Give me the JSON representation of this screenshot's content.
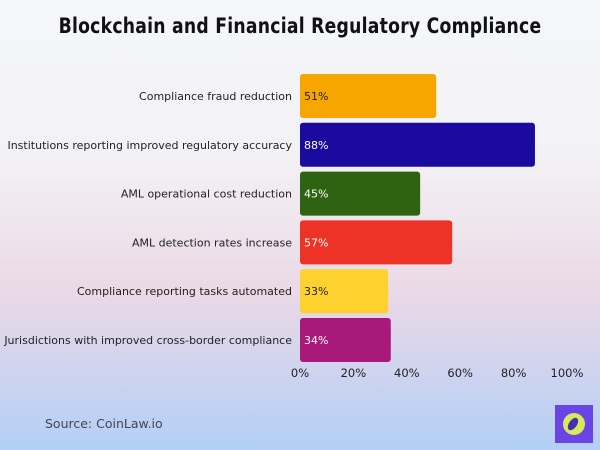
{
  "chart_data": {
    "type": "bar",
    "orientation": "horizontal",
    "title": "Blockchain and Financial Regulatory Compliance",
    "categories": [
      "Compliance fraud reduction",
      "Institutions reporting improved regulatory accuracy",
      "AML operational cost reduction",
      "AML detection rates increase",
      "Compliance reporting tasks automated",
      "Jurisdictions with improved cross-border compliance"
    ],
    "values": [
      51,
      88,
      45,
      57,
      33,
      34
    ],
    "data_labels": [
      "51%",
      "88%",
      "45%",
      "57%",
      "33%",
      "34%"
    ],
    "colors": [
      "#f7a600",
      "#1b0a9e",
      "#2e6411",
      "#ec3325",
      "#fdd22f",
      "#a8197a"
    ],
    "xlim": [
      0,
      100
    ],
    "xticks": [
      "0%",
      "20%",
      "40%",
      "60%",
      "80%",
      "100%"
    ],
    "grid": false
  },
  "footer": {
    "source": "Source: CoinLaw.io"
  }
}
